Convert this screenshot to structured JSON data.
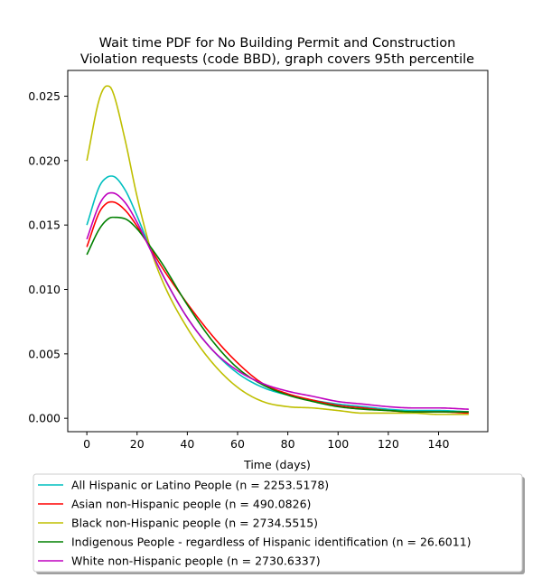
{
  "chart_data": {
    "type": "line",
    "title_lines": [
      "Wait time PDF for No Building Permit and Construction",
      "Violation  requests (code BBD), graph covers 95th percentile"
    ],
    "xlabel": "Time (days)",
    "ylabel": "",
    "xlim": [
      -7.6,
      159.6
    ],
    "ylim": [
      -0.00104,
      0.027
    ],
    "xticks": [
      0,
      20,
      40,
      60,
      80,
      100,
      120,
      140
    ],
    "xtick_labels": [
      "0",
      "20",
      "40",
      "60",
      "80",
      "100",
      "120",
      "140"
    ],
    "yticks": [
      0.0,
      0.005,
      0.01,
      0.015,
      0.02,
      0.025
    ],
    "ytick_labels": [
      "0.000",
      "0.005",
      "0.010",
      "0.015",
      "0.020",
      "0.025"
    ],
    "grid": false,
    "legend_placement": "below",
    "x": [
      0,
      5,
      8,
      10,
      15,
      20,
      25,
      30,
      40,
      50,
      60,
      70,
      80,
      90,
      100,
      110,
      120,
      130,
      140,
      152
    ],
    "series": [
      {
        "name": "All Hispanic or Latino People (n = 2253.5178)",
        "color": "#00bfbf",
        "values": [
          0.015,
          0.018,
          0.0187,
          0.0188,
          0.0178,
          0.0157,
          0.0133,
          0.0112,
          0.0078,
          0.0053,
          0.0035,
          0.0024,
          0.0018,
          0.0014,
          0.0011,
          0.0009,
          0.0007,
          0.0006,
          0.0006,
          0.0005
        ]
      },
      {
        "name": "Asian non-Hispanic people (n = 490.0826)",
        "color": "#ff0000",
        "values": [
          0.0133,
          0.016,
          0.0167,
          0.0168,
          0.0162,
          0.0149,
          0.0133,
          0.0117,
          0.0089,
          0.0064,
          0.0043,
          0.0027,
          0.0019,
          0.0014,
          0.001,
          0.0008,
          0.0006,
          0.0005,
          0.0005,
          0.0004
        ]
      },
      {
        "name": "Black non-Hispanic people (n = 2734.5515)",
        "color": "#bfbf00",
        "values": [
          0.02,
          0.0248,
          0.0258,
          0.0255,
          0.0218,
          0.0172,
          0.0134,
          0.0107,
          0.007,
          0.0043,
          0.0024,
          0.0013,
          0.0009,
          0.0008,
          0.0006,
          0.0004,
          0.0004,
          0.0004,
          0.0003,
          0.0003
        ]
      },
      {
        "name": "Indigenous People - regardless of Hispanic identification (n = 26.6011)",
        "color": "#008000",
        "values": [
          0.0127,
          0.0147,
          0.0154,
          0.0156,
          0.0155,
          0.0147,
          0.0134,
          0.012,
          0.0088,
          0.006,
          0.0039,
          0.0026,
          0.0018,
          0.0013,
          0.0009,
          0.0007,
          0.0006,
          0.0005,
          0.0005,
          0.0005
        ]
      },
      {
        "name": "White non-Hispanic people (n = 2730.6337)",
        "color": "#bf00bf",
        "values": [
          0.0139,
          0.0166,
          0.0174,
          0.0175,
          0.0168,
          0.0152,
          0.0132,
          0.0112,
          0.0078,
          0.0053,
          0.0037,
          0.0027,
          0.0021,
          0.0017,
          0.0013,
          0.0011,
          0.0009,
          0.0008,
          0.0008,
          0.0007
        ]
      }
    ]
  }
}
